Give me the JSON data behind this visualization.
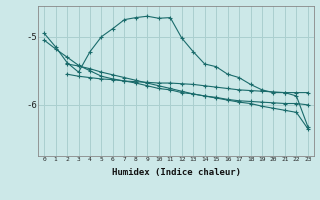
{
  "xlabel": "Humidex (Indice chaleur)",
  "ylabel": "",
  "background_color": "#cce8e8",
  "line_color": "#1a6b6b",
  "grid_color": "#aacfcf",
  "xlim": [
    -0.5,
    23.5
  ],
  "ylim": [
    -6.75,
    -4.55
  ],
  "yticks": [
    -6,
    -5
  ],
  "xticks": [
    0,
    1,
    2,
    3,
    4,
    5,
    6,
    7,
    8,
    9,
    10,
    11,
    12,
    13,
    14,
    15,
    16,
    17,
    18,
    19,
    20,
    21,
    22,
    23
  ],
  "series": [
    {
      "x": [
        0,
        1,
        2,
        3,
        4,
        5,
        6,
        7,
        8,
        9,
        10,
        11,
        12,
        13,
        14,
        15,
        16,
        17,
        18,
        19,
        20,
        21,
        22,
        23
      ],
      "y": [
        -4.95,
        -5.15,
        -5.38,
        -5.52,
        -5.22,
        -5.0,
        -4.88,
        -4.75,
        -4.72,
        -4.7,
        -4.73,
        -4.72,
        -5.02,
        -5.22,
        -5.4,
        -5.44,
        -5.55,
        -5.6,
        -5.7,
        -5.78,
        -5.82,
        -5.82,
        -5.87,
        -6.32
      ]
    },
    {
      "x": [
        2,
        3,
        4,
        5,
        6,
        7,
        8,
        9,
        10,
        11,
        12,
        13,
        14,
        15,
        16,
        17,
        18,
        19,
        20,
        21,
        22,
        23
      ],
      "y": [
        -5.4,
        -5.43,
        -5.47,
        -5.52,
        -5.56,
        -5.6,
        -5.64,
        -5.68,
        -5.72,
        -5.76,
        -5.8,
        -5.84,
        -5.87,
        -5.9,
        -5.93,
        -5.96,
        -5.98,
        -6.02,
        -6.05,
        -6.08,
        -6.11,
        -6.35
      ]
    },
    {
      "x": [
        0,
        1,
        2,
        3,
        4,
        5,
        6,
        7,
        8,
        9,
        10,
        11,
        12,
        13,
        14,
        15,
        16,
        17,
        18,
        19,
        20,
        21,
        22,
        23
      ],
      "y": [
        -5.05,
        -5.18,
        -5.3,
        -5.42,
        -5.5,
        -5.58,
        -5.62,
        -5.65,
        -5.68,
        -5.72,
        -5.76,
        -5.78,
        -5.82,
        -5.84,
        -5.87,
        -5.89,
        -5.92,
        -5.94,
        -5.95,
        -5.96,
        -5.97,
        -5.98,
        -5.98,
        -6.0
      ]
    },
    {
      "x": [
        2,
        3,
        4,
        5,
        6,
        7,
        8,
        9,
        10,
        11,
        12,
        13,
        14,
        15,
        16,
        17,
        18,
        19,
        20,
        21,
        22,
        23
      ],
      "y": [
        -5.55,
        -5.58,
        -5.6,
        -5.62,
        -5.63,
        -5.65,
        -5.66,
        -5.67,
        -5.68,
        -5.68,
        -5.69,
        -5.7,
        -5.72,
        -5.74,
        -5.76,
        -5.78,
        -5.79,
        -5.8,
        -5.81,
        -5.82,
        -5.82,
        -5.82
      ]
    }
  ]
}
